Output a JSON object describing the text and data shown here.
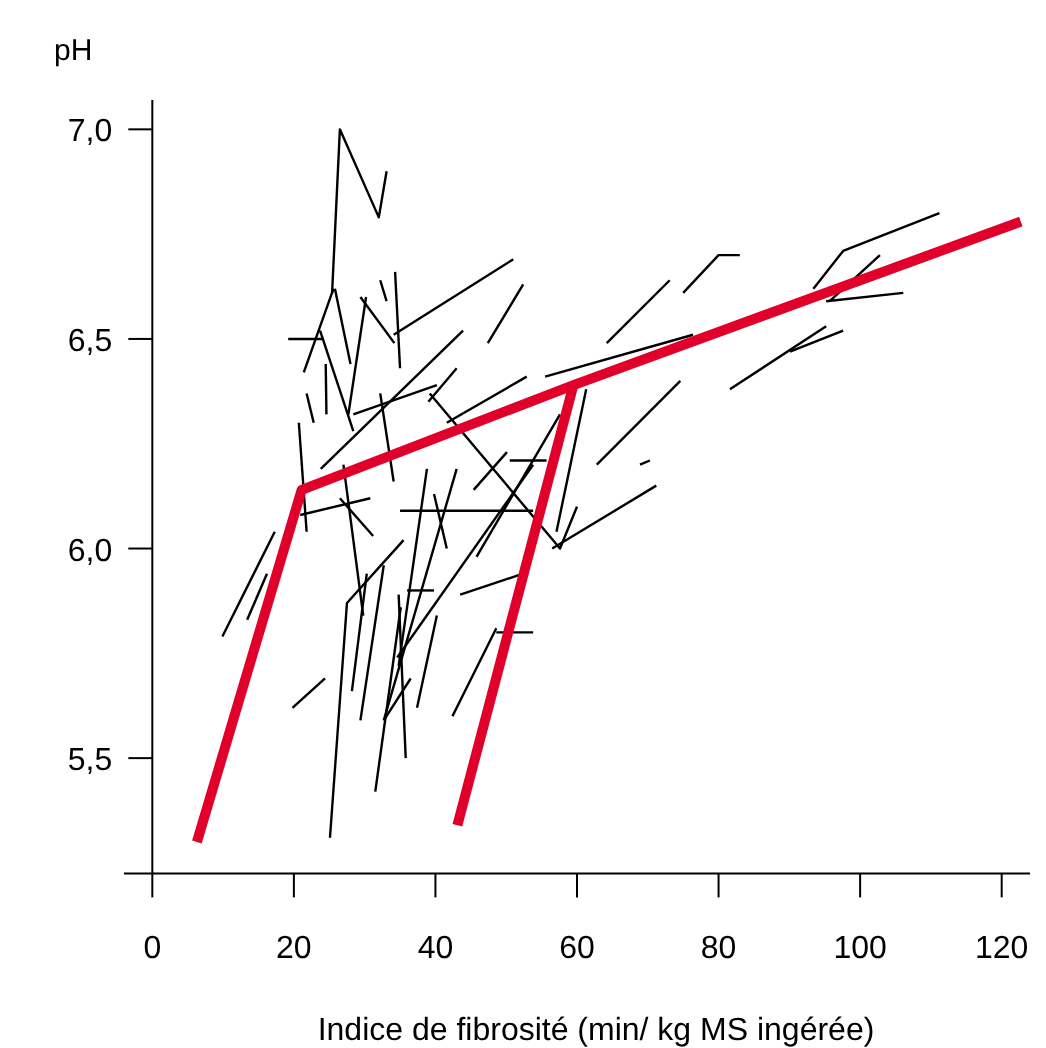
{
  "chart_data": {
    "type": "line",
    "xlabel": "Indice de fibrosité (min/ kg MS ingérée)",
    "ylabel": "pH",
    "xlim": [
      -4,
      124
    ],
    "ylim": [
      5.225,
      7.07
    ],
    "xticks": [
      0,
      20,
      40,
      60,
      80,
      100,
      120
    ],
    "yticks": [
      {
        "value": 5.5,
        "label": "5,5"
      },
      {
        "value": 6.0,
        "label": "6,0"
      },
      {
        "value": 6.5,
        "label": "6,5"
      },
      {
        "value": 7.0,
        "label": "7,0"
      }
    ],
    "series": [
      {
        "color": "#000000",
        "x": [
          25.4,
          26.5,
          32.0,
          33.1
        ],
        "values": [
          6.61,
          7.0,
          6.79,
          6.9
        ]
      },
      {
        "color": "#000000",
        "x": [
          19.2,
          24.2
        ],
        "values": [
          6.5,
          6.5
        ]
      },
      {
        "color": "#000000",
        "x": [
          21.4,
          25.6
        ],
        "values": [
          6.42,
          6.62
        ]
      },
      {
        "color": "#000000",
        "x": [
          25.8,
          28.0
        ],
        "values": [
          6.62,
          6.44
        ]
      },
      {
        "color": "#000000",
        "x": [
          27.7,
          30.2
        ],
        "values": [
          6.32,
          6.6
        ]
      },
      {
        "color": "#000000",
        "x": [
          29.4,
          34.2
        ],
        "values": [
          6.6,
          6.49
        ]
      },
      {
        "color": "#000000",
        "x": [
          34.3,
          35.0
        ],
        "values": [
          6.66,
          6.43
        ]
      },
      {
        "color": "#000000",
        "x": [
          34.1,
          51.0
        ],
        "values": [
          6.51,
          6.69
        ]
      },
      {
        "color": "#000000",
        "x": [
          47.4,
          52.4
        ],
        "values": [
          6.49,
          6.63
        ]
      },
      {
        "color": "#000000",
        "x": [
          32.2,
          33.1
        ],
        "values": [
          6.64,
          6.59
        ]
      },
      {
        "color": "#000000",
        "x": [
          23.7,
          28.4
        ],
        "values": [
          6.52,
          6.28
        ]
      },
      {
        "color": "#000000",
        "x": [
          21.8,
          22.8
        ],
        "values": [
          6.37,
          6.3
        ]
      },
      {
        "color": "#000000",
        "x": [
          20.7,
          21.8
        ],
        "values": [
          6.3,
          6.04
        ]
      },
      {
        "color": "#000000",
        "x": [
          24.5,
          24.6
        ],
        "values": [
          6.44,
          6.32
        ]
      },
      {
        "color": "#000000",
        "x": [
          28.4,
          40.2
        ],
        "values": [
          6.32,
          6.39
        ]
      },
      {
        "color": "#000000",
        "x": [
          23.8,
          43.9
        ],
        "values": [
          6.19,
          6.52
        ]
      },
      {
        "color": "#000000",
        "x": [
          32.2,
          34.1
        ],
        "values": [
          6.37,
          6.16
        ]
      },
      {
        "color": "#000000",
        "x": [
          39.2,
          57.6,
          60.0
        ],
        "values": [
          6.37,
          6.0,
          6.1
        ]
      },
      {
        "color": "#000000",
        "x": [
          41.6,
          52.9
        ],
        "values": [
          6.3,
          6.41
        ]
      },
      {
        "color": "#000000",
        "x": [
          55.5,
          76.4
        ],
        "values": [
          6.41,
          6.51
        ]
      },
      {
        "color": "#000000",
        "x": [
          64.2,
          73.1
        ],
        "values": [
          6.49,
          6.64
        ]
      },
      {
        "color": "#000000",
        "x": [
          75.0,
          80.0,
          83.0
        ],
        "values": [
          6.61,
          6.7,
          6.7
        ]
      },
      {
        "color": "#000000",
        "x": [
          93.4,
          97.6,
          111.2
        ],
        "values": [
          6.62,
          6.71,
          6.8
        ]
      },
      {
        "color": "#000000",
        "x": [
          95.7,
          102.8
        ],
        "values": [
          6.59,
          6.7
        ]
      },
      {
        "color": "#000000",
        "x": [
          95.2,
          106.1
        ],
        "values": [
          6.59,
          6.61
        ]
      },
      {
        "color": "#000000",
        "x": [
          90.1,
          97.6
        ],
        "values": [
          6.47,
          6.52
        ]
      },
      {
        "color": "#000000",
        "x": [
          81.6,
          95.2
        ],
        "values": [
          6.38,
          6.53
        ]
      },
      {
        "color": "#000000",
        "x": [
          62.8,
          74.6
        ],
        "values": [
          6.2,
          6.4
        ]
      },
      {
        "color": "#000000",
        "x": [
          68.9,
          70.3
        ],
        "values": [
          6.2,
          6.21
        ]
      },
      {
        "color": "#000000",
        "x": [
          56.5,
          71.2
        ],
        "values": [
          6.0,
          6.15
        ]
      },
      {
        "color": "#000000",
        "x": [
          57.1,
          61.3
        ],
        "values": [
          6.04,
          6.38
        ]
      },
      {
        "color": "#000000",
        "x": [
          35.0,
          53.8
        ],
        "values": [
          6.09,
          6.09
        ]
      },
      {
        "color": "#000000",
        "x": [
          45.4,
          50.1
        ],
        "values": [
          6.14,
          6.23
        ]
      },
      {
        "color": "#000000",
        "x": [
          50.5,
          55.7
        ],
        "values": [
          6.21,
          6.21
        ]
      },
      {
        "color": "#000000",
        "x": [
          45.8,
          57.6
        ],
        "values": [
          5.98,
          6.32
        ]
      },
      {
        "color": "#000000",
        "x": [
          43.5,
          52.4
        ],
        "values": [
          5.89,
          5.94
        ]
      },
      {
        "color": "#000000",
        "x": [
          42.4,
          48.6
        ],
        "values": [
          5.6,
          5.81
        ]
      },
      {
        "color": "#000000",
        "x": [
          48.6,
          53.8
        ],
        "values": [
          5.8,
          5.8
        ]
      },
      {
        "color": "#000000",
        "x": [
          32.7,
          43.0
        ],
        "values": [
          5.59,
          6.19
        ]
      },
      {
        "color": "#000000",
        "x": [
          36.0,
          39.8
        ],
        "values": [
          5.9,
          5.9
        ]
      },
      {
        "color": "#000000",
        "x": [
          37.4,
          40.2
        ],
        "values": [
          5.62,
          5.84
        ]
      },
      {
        "color": "#000000",
        "x": [
          35.8,
          34.8
        ],
        "values": [
          5.5,
          5.89
        ]
      },
      {
        "color": "#000000",
        "x": [
          32.7,
          36.5
        ],
        "values": [
          5.59,
          5.69
        ]
      },
      {
        "color": "#000000",
        "x": [
          25.1,
          27.5,
          35.5
        ],
        "values": [
          5.31,
          5.87,
          6.02
        ]
      },
      {
        "color": "#000000",
        "x": [
          19.8,
          24.4
        ],
        "values": [
          5.62,
          5.69
        ]
      },
      {
        "color": "#000000",
        "x": [
          31.5,
          35.1
        ],
        "values": [
          5.42,
          5.86
        ]
      },
      {
        "color": "#000000",
        "x": [
          29.4,
          32.7
        ],
        "values": [
          5.59,
          5.96
        ]
      },
      {
        "color": "#000000",
        "x": [
          28.2,
          30.3
        ],
        "values": [
          5.66,
          5.94
        ]
      },
      {
        "color": "#000000",
        "x": [
          9.9,
          17.3
        ],
        "values": [
          5.79,
          6.04
        ]
      },
      {
        "color": "#000000",
        "x": [
          13.4,
          16.2
        ],
        "values": [
          5.83,
          5.94
        ]
      },
      {
        "color": "#000000",
        "x": [
          20.9,
          30.8
        ],
        "values": [
          6.08,
          6.12
        ]
      },
      {
        "color": "#000000",
        "x": [
          26.5,
          31.2
        ],
        "values": [
          6.12,
          6.03
        ]
      },
      {
        "color": "#000000",
        "x": [
          27.0,
          29.8
        ],
        "values": [
          6.2,
          5.84
        ]
      },
      {
        "color": "#000000",
        "x": [
          34.8,
          38.8
        ],
        "values": [
          5.72,
          6.19
        ]
      },
      {
        "color": "#000000",
        "x": [
          39.8,
          41.6
        ],
        "values": [
          6.13,
          6.0
        ]
      },
      {
        "color": "#000000",
        "x": [
          34.6,
          53.8
        ],
        "values": [
          5.74,
          6.2
        ]
      },
      {
        "color": "#000000",
        "x": [
          39.0,
          43.0
        ],
        "values": [
          6.35,
          6.43
        ]
      },
      {
        "color": "#e0002a",
        "x": [
          6.3,
          21.1,
          59.5,
          122.7
        ],
        "values": [
          5.3,
          6.14,
          6.39,
          6.78
        ]
      },
      {
        "color": "#e0002a",
        "x": [
          43.1,
          59.5
        ],
        "values": [
          5.34,
          6.39
        ]
      }
    ]
  }
}
